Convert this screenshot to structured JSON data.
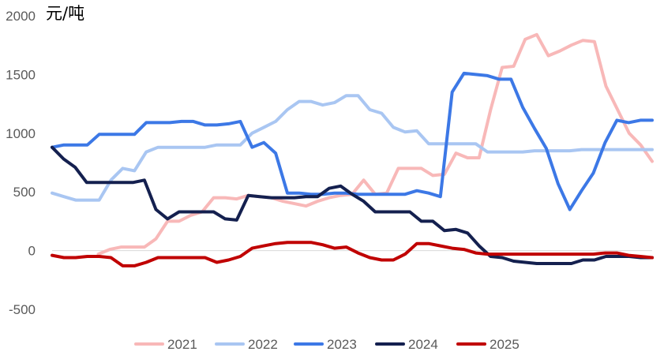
{
  "chart_data": {
    "type": "line",
    "unit_label": "元/吨",
    "ylim": [
      -500,
      2000
    ],
    "yticks": [
      2000,
      1500,
      1000,
      500,
      0,
      -500
    ],
    "grid": false,
    "legend_position": "bottom",
    "series": [
      {
        "name": "2021",
        "color": "#F8B8B8",
        "values": [
          null,
          null,
          null,
          null,
          -30,
          10,
          30,
          30,
          30,
          100,
          250,
          250,
          300,
          330,
          450,
          450,
          440,
          470,
          460,
          450,
          420,
          400,
          380,
          420,
          450,
          470,
          480,
          600,
          480,
          490,
          700,
          700,
          700,
          640,
          650,
          830,
          790,
          790,
          1200,
          1560,
          1570,
          1800,
          1840,
          1660,
          1700,
          1750,
          1790,
          1780,
          1400,
          1200,
          1000,
          900,
          760
        ]
      },
      {
        "name": "2022",
        "color": "#A9C6F2",
        "values": [
          490,
          460,
          430,
          430,
          430,
          600,
          700,
          680,
          840,
          880,
          880,
          880,
          880,
          880,
          900,
          900,
          900,
          1000,
          1050,
          1100,
          1200,
          1270,
          1270,
          1240,
          1260,
          1320,
          1320,
          1200,
          1170,
          1050,
          1010,
          1020,
          910,
          910,
          910,
          910,
          910,
          840,
          840,
          840,
          840,
          850,
          850,
          850,
          850,
          860,
          860,
          860,
          860,
          860,
          860,
          860
        ]
      },
      {
        "name": "2023",
        "color": "#3C78E6",
        "values": [
          880,
          900,
          900,
          900,
          990,
          990,
          990,
          990,
          1090,
          1090,
          1090,
          1100,
          1100,
          1070,
          1070,
          1080,
          1100,
          880,
          920,
          830,
          490,
          490,
          480,
          480,
          490,
          490,
          480,
          480,
          480,
          480,
          480,
          510,
          490,
          460,
          1350,
          1510,
          1500,
          1490,
          1460,
          1460,
          1220,
          1040,
          870,
          570,
          350,
          510,
          660,
          920,
          1110,
          1090,
          1110,
          1110
        ]
      },
      {
        "name": "2024",
        "color": "#14204F",
        "values": [
          880,
          780,
          710,
          580,
          580,
          580,
          580,
          580,
          600,
          350,
          270,
          330,
          330,
          330,
          330,
          270,
          260,
          470,
          460,
          450,
          450,
          450,
          460,
          460,
          530,
          550,
          480,
          420,
          330,
          330,
          330,
          330,
          250,
          250,
          170,
          180,
          150,
          40,
          -50,
          -60,
          -90,
          -100,
          -110,
          -110,
          -110,
          -110,
          -80,
          -80,
          -50,
          -50,
          -50,
          -60,
          -60
        ]
      },
      {
        "name": "2025",
        "color": "#C00000",
        "values": [
          -40,
          -60,
          -60,
          -50,
          -50,
          -60,
          -130,
          -130,
          -100,
          -60,
          -60,
          -60,
          -60,
          -60,
          -100,
          -80,
          -50,
          20,
          40,
          60,
          70,
          70,
          70,
          50,
          20,
          30,
          -20,
          -60,
          -80,
          -80,
          -30,
          60,
          60,
          40,
          20,
          10,
          -20,
          -30,
          -30,
          -30,
          -30,
          -30,
          -30,
          -30,
          -30,
          -30,
          -30,
          -20,
          -20,
          -40,
          -50,
          -60
        ]
      }
    ]
  }
}
